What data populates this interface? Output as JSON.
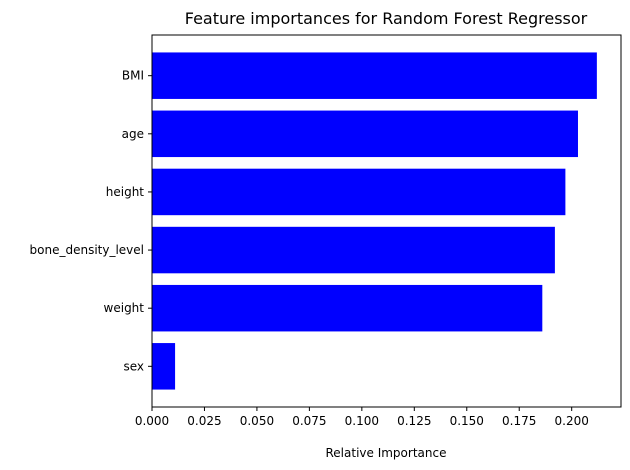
{
  "chart_data": {
    "type": "bar",
    "orientation": "horizontal",
    "title": "Feature importances for Random Forest Regressor",
    "xlabel": "Relative Importance",
    "ylabel": "",
    "categories": [
      "sex",
      "weight",
      "bone_density_level",
      "height",
      "age",
      "BMI"
    ],
    "values": [
      0.011,
      0.186,
      0.192,
      0.197,
      0.203,
      0.212
    ],
    "xlim": [
      0,
      0.2235
    ],
    "xticks": [
      "0.000",
      "0.025",
      "0.050",
      "0.075",
      "0.100",
      "0.125",
      "0.150",
      "0.175",
      "0.200"
    ],
    "bar_color": "#0000ff",
    "grid": false,
    "legend": "none"
  }
}
